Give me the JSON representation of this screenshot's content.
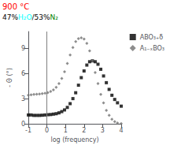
{
  "chart_data": {
    "type": "scatter",
    "xlabel": "log (frequency)",
    "ylabel": "- Θ (°)",
    "xlim": [
      -1,
      4
    ],
    "ylim": [
      0,
      11
    ],
    "xticks": [
      -1,
      0,
      1,
      2,
      3,
      4
    ],
    "yticks": [
      0,
      3,
      6,
      9
    ],
    "grid": false,
    "legend": "right",
    "x": [
      -1.0,
      -0.85,
      -0.7,
      -0.55,
      -0.4,
      -0.25,
      -0.1,
      0.05,
      0.2,
      0.35,
      0.5,
      0.65,
      0.8,
      0.95,
      1.1,
      1.25,
      1.4,
      1.55,
      1.7,
      1.85,
      2.0,
      2.15,
      2.3,
      2.45,
      2.6,
      2.75,
      2.9,
      3.05,
      3.2,
      3.35,
      3.5,
      3.65,
      3.8,
      4.0
    ],
    "series": [
      {
        "name": "ABO₃₊δ",
        "color": "#000000",
        "marker": "square",
        "values": [
          1.05,
          1.05,
          1.0,
          1.0,
          1.0,
          1.02,
          1.05,
          1.08,
          1.1,
          1.15,
          1.2,
          1.3,
          1.45,
          1.65,
          1.95,
          2.4,
          3.0,
          3.7,
          4.6,
          5.5,
          6.3,
          7.0,
          7.4,
          7.5,
          7.4,
          7.1,
          6.5,
          5.7,
          4.9,
          4.1,
          3.4,
          2.9,
          2.5,
          2.1
        ]
      },
      {
        "name": "A₁₋ₓBO₃",
        "color": "#707070",
        "marker": "diamond",
        "values": [
          3.4,
          3.45,
          3.5,
          3.52,
          3.55,
          3.6,
          3.65,
          3.72,
          3.85,
          4.05,
          4.35,
          4.8,
          5.4,
          6.2,
          7.2,
          8.2,
          9.1,
          9.8,
          10.15,
          10.25,
          10.1,
          9.6,
          8.7,
          7.5,
          6.1,
          4.8,
          3.5,
          2.5,
          1.6,
          1.0,
          0.55,
          0.25,
          0.1,
          0.02
        ]
      }
    ],
    "reference_lines": [
      {
        "x": 0,
        "color": "gray"
      }
    ],
    "annotations": [
      [
        {
          "text": "900 °C",
          "color": "red"
        }
      ],
      [
        {
          "text": "47%",
          "color": "black"
        },
        {
          "text": "H₂O",
          "color": "cyan"
        },
        {
          "text": "/53%",
          "color": "black"
        },
        {
          "text": "N₂",
          "color": "green"
        }
      ]
    ]
  }
}
